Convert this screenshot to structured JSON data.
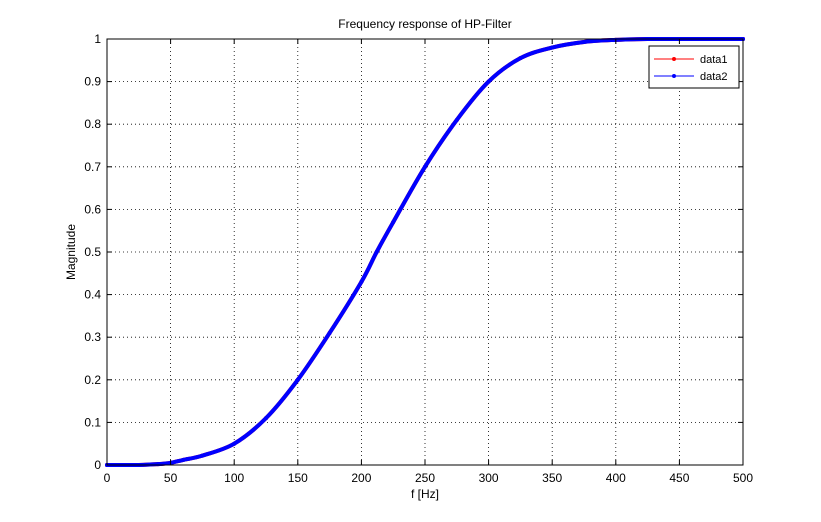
{
  "chart_data": {
    "type": "line",
    "title": "Frequency response of HP-Filter",
    "xlabel": "f [Hz]",
    "ylabel": "Magnitude",
    "xlim": [
      0,
      500
    ],
    "ylim": [
      0,
      1
    ],
    "xticks": [
      0,
      50,
      100,
      150,
      200,
      250,
      300,
      350,
      400,
      450,
      500
    ],
    "yticks": [
      0,
      0.1,
      0.2,
      0.3,
      0.4,
      0.5,
      0.6,
      0.7,
      0.8,
      0.9,
      1
    ],
    "grid": true,
    "legend_position": "top-right",
    "x": [
      0,
      25,
      40,
      50,
      60,
      75,
      100,
      125,
      150,
      175,
      200,
      212,
      225,
      250,
      275,
      300,
      325,
      350,
      375,
      400,
      425,
      450,
      475,
      500
    ],
    "series": [
      {
        "name": "data1",
        "color": "#ff0000",
        "marker": "dot",
        "values": [
          0,
          0,
          0.002,
          0.005,
          0.012,
          0.022,
          0.05,
          0.11,
          0.2,
          0.31,
          0.43,
          0.5,
          0.57,
          0.7,
          0.81,
          0.9,
          0.955,
          0.98,
          0.993,
          0.998,
          1,
          1,
          1,
          1
        ]
      },
      {
        "name": "data2",
        "color": "#0000ff",
        "marker": "dot",
        "values": [
          0,
          0,
          0.002,
          0.005,
          0.012,
          0.022,
          0.05,
          0.11,
          0.2,
          0.31,
          0.43,
          0.5,
          0.57,
          0.7,
          0.81,
          0.9,
          0.955,
          0.98,
          0.993,
          0.998,
          1,
          1,
          1,
          1
        ]
      }
    ]
  }
}
